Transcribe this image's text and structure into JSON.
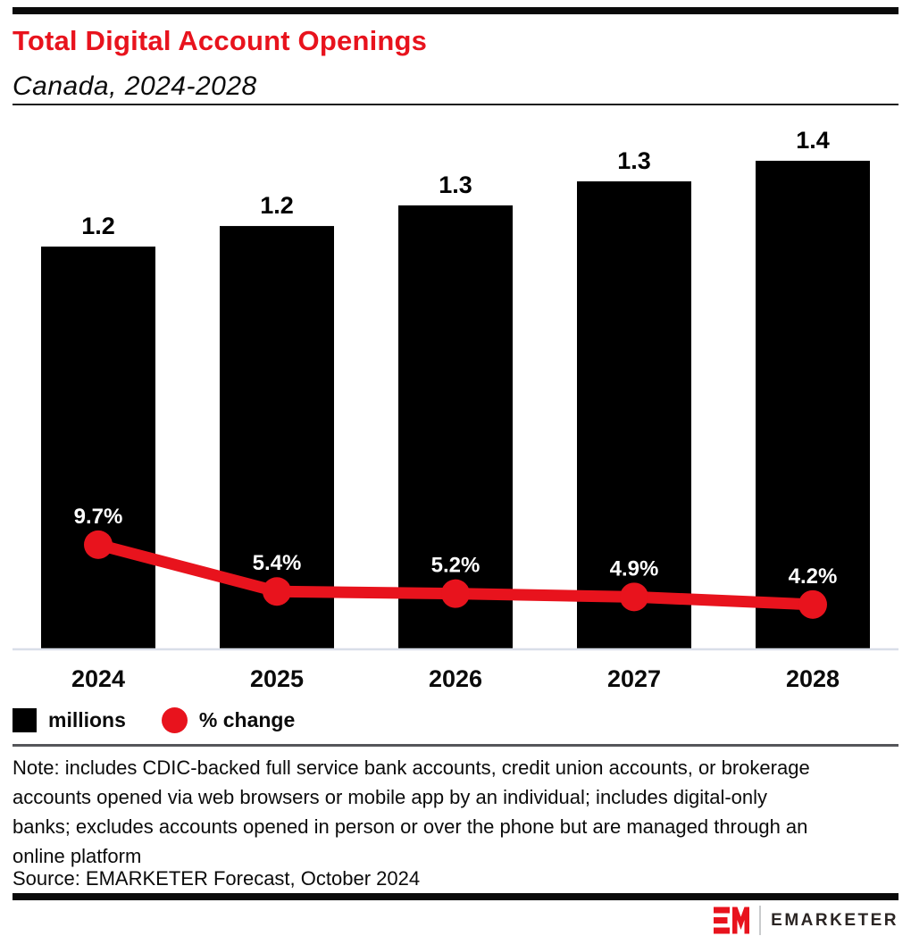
{
  "header": {
    "title": "Total Digital Account Openings",
    "subtitle": "Canada, 2024-2028"
  },
  "chart_data": {
    "type": "bar+line",
    "title": "Total Digital Account Openings",
    "subtitle": "Canada, 2024-2028",
    "categories": [
      "2024",
      "2025",
      "2026",
      "2027",
      "2028"
    ],
    "series": [
      {
        "name": "millions",
        "type": "bar",
        "color": "#000000",
        "values": [
          1.2,
          1.2,
          1.3,
          1.3,
          1.4
        ],
        "labels": [
          "1.2",
          "1.2",
          "1.3",
          "1.3",
          "1.4"
        ],
        "values_est": [
          1.17,
          1.23,
          1.29,
          1.36,
          1.42
        ]
      },
      {
        "name": "% change",
        "type": "line",
        "color": "#e8131d",
        "values": [
          9.7,
          5.4,
          5.2,
          4.9,
          4.2
        ],
        "labels": [
          "9.7%",
          "5.4%",
          "5.2%",
          "4.9%",
          "4.2%"
        ]
      }
    ],
    "legend": [
      {
        "label": "millions",
        "swatch": "square",
        "color": "#000000"
      },
      {
        "label": "% change",
        "swatch": "circle",
        "color": "#e8131d"
      }
    ],
    "axes": {
      "x_labels": [
        "2024",
        "2025",
        "2026",
        "2027",
        "2028"
      ],
      "y_axis_visible": false,
      "gridlines": false
    }
  },
  "note": "Note: includes CDIC-backed full service bank accounts, credit union accounts, or brokerage\naccounts opened via web browsers or mobile app by an individual; includes digital-only\nbanks; excludes accounts opened in person or over the phone but are managed through an\nonline platform",
  "source": "Source: EMARKETER Forecast, October 2024",
  "footer": {
    "brand_name": "EMARKETER"
  },
  "colors": {
    "accent_red": "#e8131d",
    "bar": "#000000",
    "axis_line": "#d9dee9",
    "rule_dark": "#0a0a0a",
    "rule_gray": "#55565a",
    "pct_label": "#ffffff",
    "logo_text": "#2b2523"
  }
}
